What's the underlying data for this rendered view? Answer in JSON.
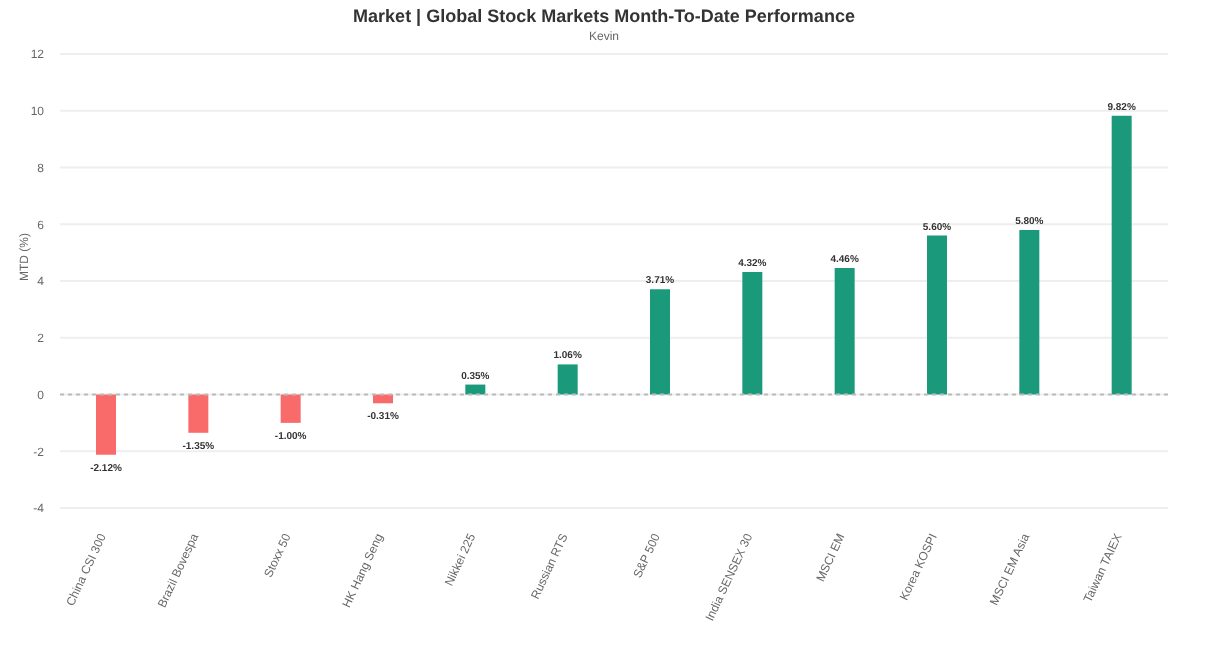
{
  "chart_data": {
    "type": "bar",
    "title": "Market | Global Stock Markets Month-To-Date Performance",
    "subtitle": "Kevin",
    "ylabel": "MTD (%)",
    "categories": [
      "China CSI 300",
      "Brazil Bovespa",
      "Stoxx 50",
      "HK Hang Seng",
      "Nikkei 225",
      "Russian RTS",
      "S&P 500",
      "India SENSEX 30",
      "MSCI EM",
      "Korea KOSPI",
      "MSCI EM Asia",
      "Taiwan TAIEX"
    ],
    "values": [
      -2.12,
      -1.35,
      -1.0,
      -0.31,
      0.35,
      1.06,
      3.71,
      4.32,
      4.46,
      5.6,
      5.8,
      9.82
    ],
    "colors": [
      "#f96b6b",
      "#f96b6b",
      "#f96b6b",
      "#f96b6b",
      "#1a9a7a",
      "#1a9a7a",
      "#1a9a7a",
      "#1a9a7a",
      "#1a9a7a",
      "#1a9a7a",
      "#1a9a7a",
      "#1a9a7a"
    ],
    "value_labels": [
      "-2.12%",
      "-1.35%",
      "-1.00%",
      "-0.31%",
      "0.35%",
      "1.06%",
      "3.71%",
      "4.32%",
      "4.46%",
      "5.60%",
      "5.80%",
      "9.82%"
    ],
    "ylim": [
      -4,
      12
    ],
    "yticks": [
      -4,
      -2,
      0,
      2,
      4,
      6,
      8,
      10,
      12
    ],
    "grid": "y",
    "ref_lines": [
      {
        "axis": "y",
        "value": 0,
        "label": null,
        "color": "#bbbbbb",
        "line_style": "dotted"
      }
    ]
  }
}
